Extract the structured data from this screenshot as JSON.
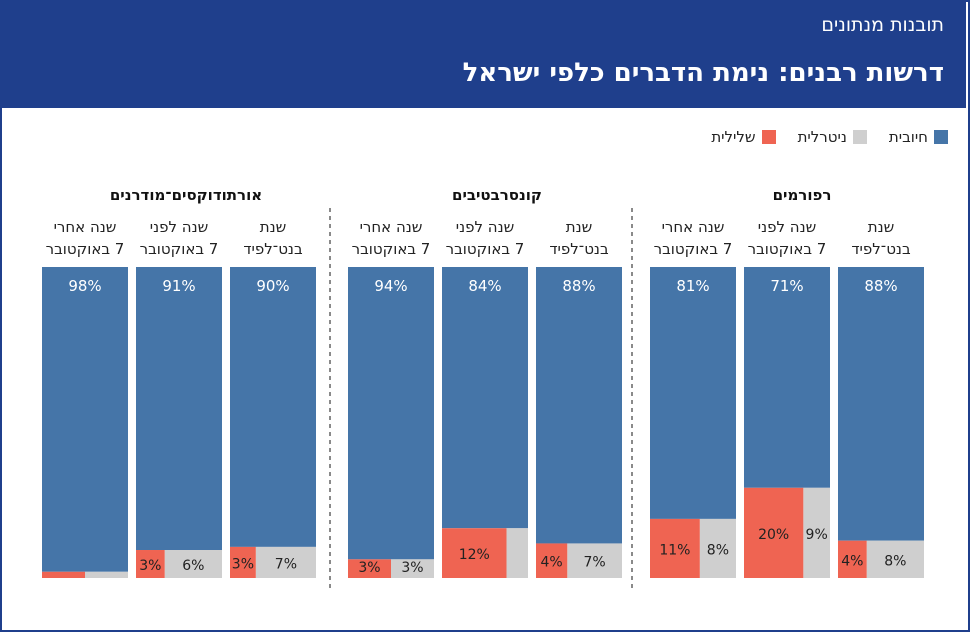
{
  "header": {
    "kicker": "תובנות מנתונים",
    "title": "דרשות רבנים: נימת הדברים כלפי ישראל"
  },
  "legend": [
    {
      "label": "חיובית",
      "color": "#4575a8"
    },
    {
      "label": "ניטרלית",
      "color": "#cfcfcf"
    },
    {
      "label": "שלילית",
      "color": "#ef6452"
    }
  ],
  "chart_data": {
    "type": "bar",
    "title": "דרשות רבנים: נימת הדברים כלפי ישראל",
    "series_names": [
      "חיובית",
      "ניטרלית",
      "שלילית"
    ],
    "groups": [
      {
        "name": "רפורמים",
        "bars": [
          {
            "label": [
              "שנת",
              "בנט־לפיד"
            ],
            "positive": 88,
            "neutral": 8,
            "negative": 4,
            "labels": {
              "positive": "88%",
              "neutral": "8%",
              "negative": "4%"
            }
          },
          {
            "label": [
              "שנה לפני",
              "7 באוקטובר"
            ],
            "positive": 71,
            "neutral": 9,
            "negative": 20,
            "labels": {
              "positive": "71%",
              "neutral": "9%",
              "negative": "20%"
            }
          },
          {
            "label": [
              "שנה אחרי",
              "7 באוקטובר"
            ],
            "positive": 81,
            "neutral": 8,
            "negative": 11,
            "labels": {
              "positive": "81%",
              "neutral": "8%",
              "negative": "11%"
            }
          }
        ]
      },
      {
        "name": "קונסרבטיבים",
        "bars": [
          {
            "label": [
              "שנת",
              "בנט־לפיד"
            ],
            "positive": 88,
            "neutral": 7,
            "negative": 4,
            "labels": {
              "positive": "88%",
              "neutral": "7%",
              "negative": "4%"
            }
          },
          {
            "label": [
              "שנה לפני",
              "7 באוקטובר"
            ],
            "positive": 84,
            "neutral": 4,
            "negative": 12,
            "labels": {
              "positive": "84%",
              "neutral": "",
              "negative": "12%"
            }
          },
          {
            "label": [
              "שנה אחרי",
              "7 באוקטובר"
            ],
            "positive": 94,
            "neutral": 3,
            "negative": 3,
            "labels": {
              "positive": "94%",
              "neutral": "3%",
              "negative": "3%"
            }
          }
        ]
      },
      {
        "name": "אורתודוקסים־מודרנים",
        "bars": [
          {
            "label": [
              "שנת",
              "בנט־לפיד"
            ],
            "positive": 90,
            "neutral": 7,
            "negative": 3,
            "labels": {
              "positive": "90%",
              "neutral": "7%",
              "negative": "3%"
            }
          },
          {
            "label": [
              "שנה לפני",
              "7 באוקטובר"
            ],
            "positive": 91,
            "neutral": 6,
            "negative": 3,
            "labels": {
              "positive": "91%",
              "neutral": "6%",
              "negative": "3%"
            }
          },
          {
            "label": [
              "שנה אחרי",
              "7 באוקטובר"
            ],
            "positive": 98,
            "neutral": 1,
            "negative": 1,
            "labels": {
              "positive": "98%",
              "neutral": "",
              "negative": ""
            }
          }
        ]
      }
    ]
  }
}
